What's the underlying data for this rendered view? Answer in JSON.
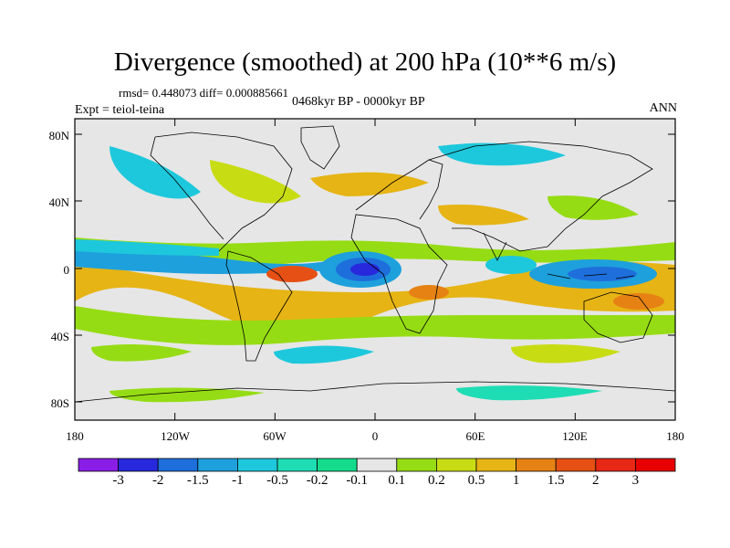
{
  "map": {
    "title": "Divergence (smoothed) at 200 hPa (10**6 m/s)",
    "stats": "rmsd= 0.448073 diff= 0.000885661",
    "experiment": "Expt = teiol-teina",
    "period": "0468kyr BP - 0000kyr BP",
    "season": "ANN",
    "lat_ticks": [
      "80N",
      "40N",
      "0",
      "40S",
      "80S"
    ],
    "lon_ticks": [
      "180",
      "120W",
      "60W",
      "0",
      "60E",
      "120E",
      "180"
    ]
  },
  "colorbar": {
    "labels": [
      "-3",
      "-2",
      "-1.5",
      "-1",
      "-0.5",
      "-0.2",
      "-0.1",
      "0.1",
      "0.2",
      "0.5",
      "1",
      "1.5",
      "2",
      "3"
    ],
    "colors": [
      "#8a1ee6",
      "#2828dc",
      "#1e6edc",
      "#1ea0dc",
      "#1ec8dc",
      "#1edcb4",
      "#14dc8c",
      "#e6e6e6",
      "#96dc14",
      "#c8dc14",
      "#e6b414",
      "#e68214",
      "#e65014",
      "#e62814",
      "#e60000"
    ]
  }
}
